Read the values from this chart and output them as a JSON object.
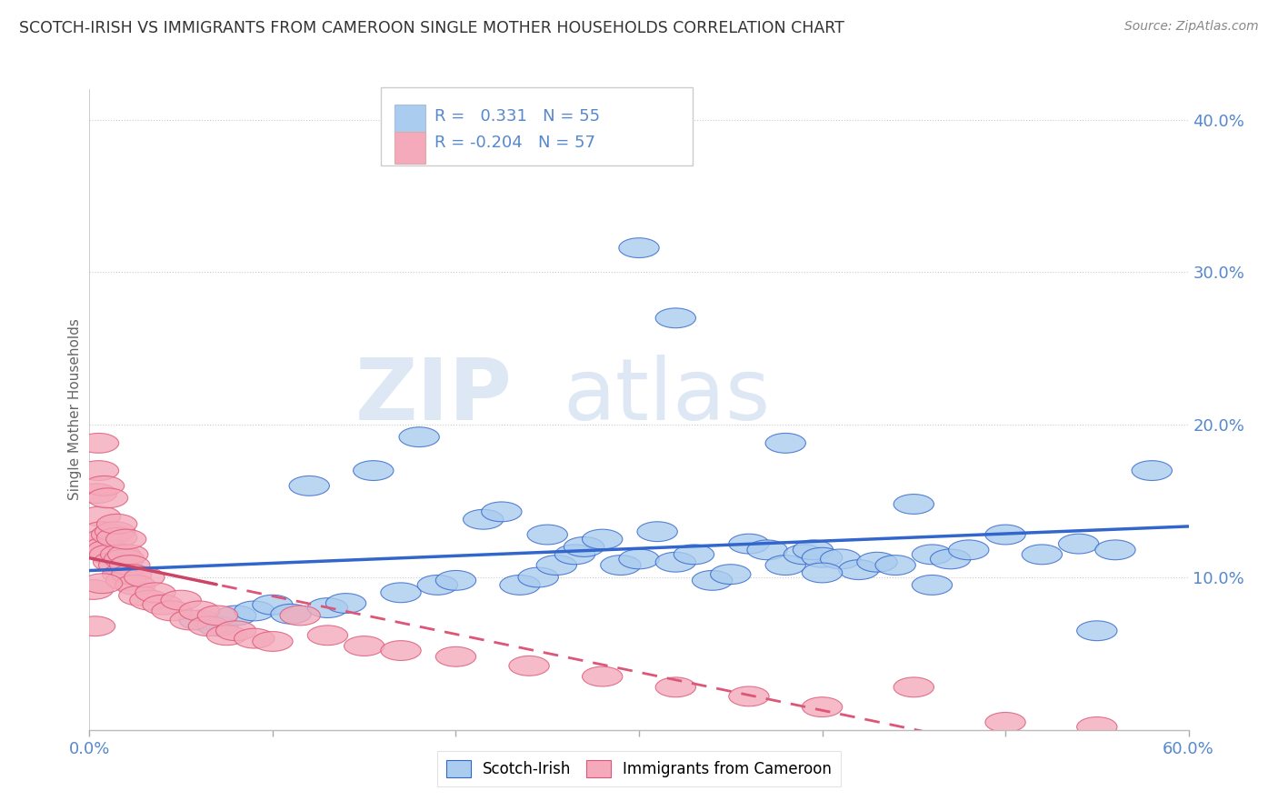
{
  "title": "SCOTCH-IRISH VS IMMIGRANTS FROM CAMEROON SINGLE MOTHER HOUSEHOLDS CORRELATION CHART",
  "source": "Source: ZipAtlas.com",
  "ylabel": "Single Mother Households",
  "ytick_values": [
    0.0,
    0.1,
    0.2,
    0.3,
    0.4
  ],
  "ytick_labels": [
    "",
    "10.0%",
    "20.0%",
    "30.0%",
    "40.0%"
  ],
  "xlim": [
    0.0,
    0.6
  ],
  "ylim": [
    0.0,
    0.42
  ],
  "r_blue": 0.331,
  "n_blue": 55,
  "r_pink": -0.204,
  "n_pink": 57,
  "blue_color": "#aaccee",
  "pink_color": "#f4aabb",
  "blue_line_color": "#3366cc",
  "pink_line_color": "#dd5577",
  "pink_line_solid_color": "#cc4466",
  "legend_label_blue": "Scotch-Irish",
  "legend_label_pink": "Immigrants from Cameroon",
  "watermark_zip": "ZIP",
  "watermark_atlas": "atlas",
  "background_color": "#ffffff",
  "grid_color": "#cccccc",
  "axis_label_color": "#5588cc",
  "title_color": "#333333",
  "source_color": "#888888",
  "blue_scatter_x": [
    0.06,
    0.07,
    0.08,
    0.09,
    0.1,
    0.11,
    0.12,
    0.13,
    0.14,
    0.155,
    0.17,
    0.18,
    0.19,
    0.2,
    0.215,
    0.225,
    0.235,
    0.245,
    0.255,
    0.265,
    0.27,
    0.28,
    0.29,
    0.3,
    0.31,
    0.32,
    0.33,
    0.34,
    0.35,
    0.36,
    0.37,
    0.38,
    0.39,
    0.395,
    0.4,
    0.41,
    0.42,
    0.43,
    0.44,
    0.45,
    0.46,
    0.47,
    0.48,
    0.5,
    0.52,
    0.54,
    0.56,
    0.58,
    0.3,
    0.32,
    0.38,
    0.46,
    0.55,
    0.4,
    0.25
  ],
  "blue_scatter_y": [
    0.072,
    0.068,
    0.075,
    0.078,
    0.082,
    0.076,
    0.16,
    0.08,
    0.083,
    0.17,
    0.09,
    0.192,
    0.095,
    0.098,
    0.138,
    0.143,
    0.095,
    0.1,
    0.108,
    0.115,
    0.12,
    0.125,
    0.108,
    0.112,
    0.13,
    0.11,
    0.115,
    0.098,
    0.102,
    0.122,
    0.118,
    0.108,
    0.115,
    0.118,
    0.113,
    0.112,
    0.105,
    0.11,
    0.108,
    0.148,
    0.115,
    0.112,
    0.118,
    0.128,
    0.115,
    0.122,
    0.118,
    0.17,
    0.316,
    0.27,
    0.188,
    0.095,
    0.065,
    0.103,
    0.128
  ],
  "pink_scatter_x": [
    0.002,
    0.004,
    0.005,
    0.006,
    0.007,
    0.008,
    0.009,
    0.01,
    0.011,
    0.012,
    0.013,
    0.014,
    0.015,
    0.016,
    0.017,
    0.018,
    0.019,
    0.02,
    0.021,
    0.022,
    0.023,
    0.025,
    0.027,
    0.03,
    0.033,
    0.036,
    0.04,
    0.045,
    0.05,
    0.055,
    0.06,
    0.065,
    0.07,
    0.075,
    0.08,
    0.09,
    0.1,
    0.115,
    0.13,
    0.15,
    0.17,
    0.2,
    0.24,
    0.28,
    0.32,
    0.36,
    0.4,
    0.45,
    0.5,
    0.55,
    0.005,
    0.008,
    0.01,
    0.015,
    0.02,
    0.003,
    0.007
  ],
  "pink_scatter_y": [
    0.092,
    0.155,
    0.17,
    0.14,
    0.13,
    0.125,
    0.12,
    0.118,
    0.115,
    0.128,
    0.11,
    0.13,
    0.126,
    0.108,
    0.115,
    0.102,
    0.112,
    0.098,
    0.115,
    0.108,
    0.102,
    0.095,
    0.088,
    0.1,
    0.085,
    0.09,
    0.082,
    0.078,
    0.085,
    0.072,
    0.078,
    0.068,
    0.075,
    0.062,
    0.065,
    0.06,
    0.058,
    0.075,
    0.062,
    0.055,
    0.052,
    0.048,
    0.042,
    0.035,
    0.028,
    0.022,
    0.015,
    0.028,
    0.005,
    0.002,
    0.188,
    0.16,
    0.152,
    0.135,
    0.125,
    0.068,
    0.096
  ]
}
